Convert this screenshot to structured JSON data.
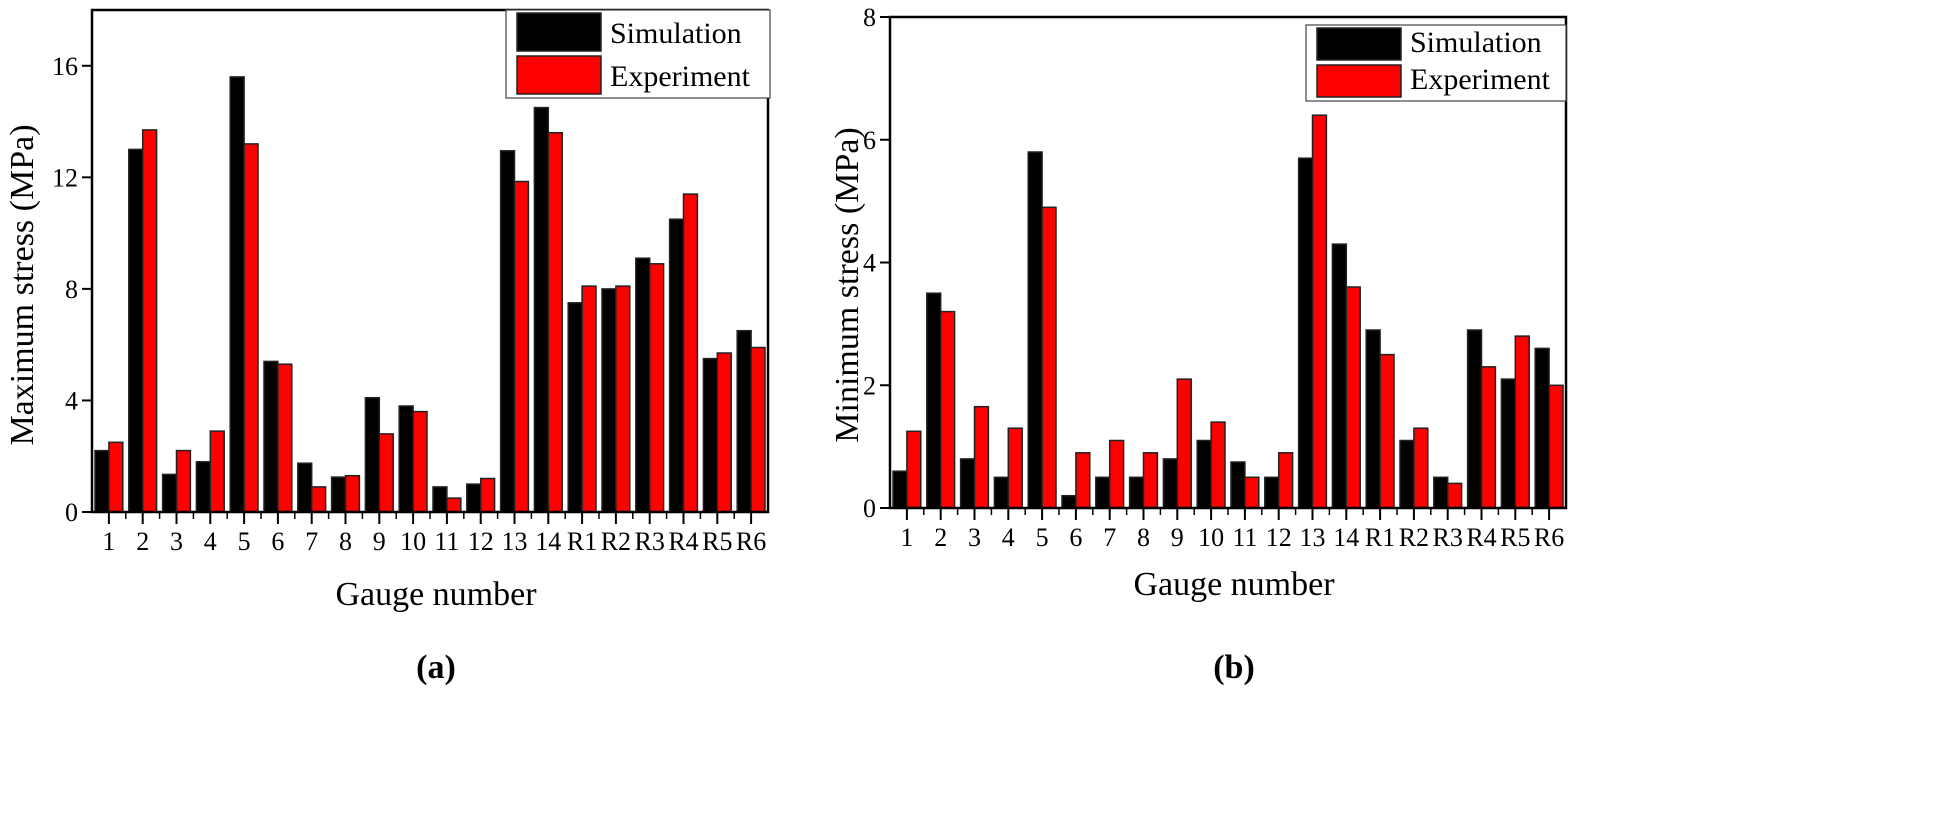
{
  "colors": {
    "simulation": "#000000",
    "experiment": "#ff0000",
    "axis": "#000000"
  },
  "chart_data": [
    {
      "type": "bar",
      "panel_label": "(a)",
      "xlabel": "Gauge number",
      "ylabel": "Maximum stress (MPa)",
      "ylim": [
        0,
        18
      ],
      "yticks": [
        0,
        4,
        8,
        12,
        16
      ],
      "legend": {
        "position": "top-right",
        "entries": [
          "Simulation",
          "Experiment"
        ]
      },
      "grid": false,
      "categories": [
        "1",
        "2",
        "3",
        "4",
        "5",
        "6",
        "7",
        "8",
        "9",
        "10",
        "11",
        "12",
        "13",
        "14",
        "R1",
        "R2",
        "R3",
        "R4",
        "R5",
        "R6"
      ],
      "series": [
        {
          "name": "Simulation",
          "values": [
            2.2,
            13.0,
            1.35,
            1.8,
            15.6,
            5.4,
            1.75,
            1.25,
            4.1,
            3.8,
            0.9,
            1.0,
            12.95,
            14.5,
            7.5,
            8.0,
            9.1,
            10.5,
            5.5,
            6.5
          ]
        },
        {
          "name": "Experiment",
          "values": [
            2.5,
            13.7,
            2.2,
            2.9,
            13.2,
            5.3,
            0.9,
            1.3,
            2.8,
            3.6,
            0.5,
            1.2,
            11.85,
            13.6,
            8.1,
            8.1,
            8.9,
            11.4,
            5.7,
            5.9
          ]
        }
      ]
    },
    {
      "type": "bar",
      "panel_label": "(b)",
      "xlabel": "Gauge number",
      "ylabel": "Minimum stress (MPa)",
      "ylim": [
        0,
        8
      ],
      "yticks": [
        0,
        2,
        4,
        6,
        8
      ],
      "legend": {
        "position": "top-right",
        "entries": [
          "Simulation",
          "Experiment"
        ]
      },
      "grid": false,
      "categories": [
        "1",
        "2",
        "3",
        "4",
        "5",
        "6",
        "7",
        "8",
        "9",
        "10",
        "11",
        "12",
        "13",
        "14",
        "R1",
        "R2",
        "R3",
        "R4",
        "R5",
        "R6"
      ],
      "series": [
        {
          "name": "Simulation",
          "values": [
            0.6,
            3.5,
            0.8,
            0.5,
            5.8,
            0.2,
            0.5,
            0.5,
            0.8,
            1.1,
            0.75,
            0.5,
            5.7,
            4.3,
            2.9,
            1.1,
            0.5,
            2.9,
            2.1,
            2.6
          ]
        },
        {
          "name": "Experiment",
          "values": [
            1.25,
            3.2,
            1.65,
            1.3,
            4.9,
            0.9,
            1.1,
            0.9,
            2.1,
            1.4,
            0.5,
            0.9,
            6.4,
            3.6,
            2.5,
            1.3,
            0.4,
            2.3,
            2.8,
            2.0
          ]
        }
      ]
    }
  ]
}
